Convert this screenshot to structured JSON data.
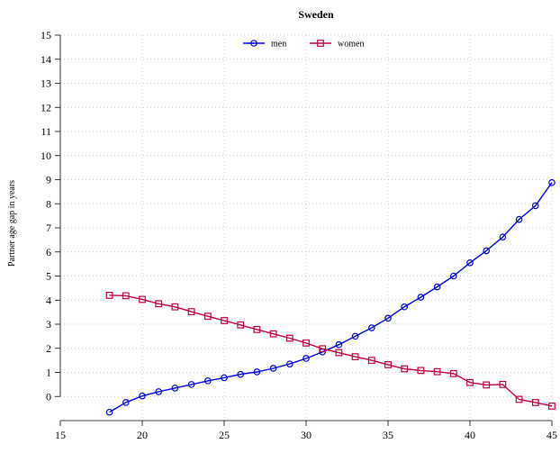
{
  "chart_data": {
    "type": "line",
    "title": "Sweden",
    "xlabel": "",
    "ylabel": "Partner age gap in years",
    "xlim": [
      15,
      45
    ],
    "ylim": [
      -1,
      15
    ],
    "x_ticks": [
      15,
      20,
      25,
      30,
      35,
      40,
      45
    ],
    "y_ticks": [
      0,
      1,
      2,
      3,
      4,
      5,
      6,
      7,
      8,
      9,
      10,
      11,
      12,
      13,
      14,
      15
    ],
    "grid": true,
    "legend_position": "top-center",
    "x": [
      18,
      19,
      20,
      21,
      22,
      23,
      24,
      25,
      26,
      27,
      28,
      29,
      30,
      31,
      32,
      33,
      34,
      35,
      36,
      37,
      38,
      39,
      40,
      41,
      42,
      43,
      44,
      45
    ],
    "series": [
      {
        "name": "men",
        "color": "#0000dd",
        "marker": "circle",
        "values": [
          -0.65,
          -0.25,
          0.02,
          0.2,
          0.35,
          0.5,
          0.65,
          0.78,
          0.92,
          1.02,
          1.17,
          1.35,
          1.58,
          1.85,
          2.15,
          2.5,
          2.85,
          3.25,
          3.72,
          4.12,
          4.55,
          5.0,
          5.55,
          6.05,
          6.62,
          7.35,
          7.92,
          8.88
        ]
      },
      {
        "name": "women",
        "color": "#c0003c",
        "marker": "square",
        "values": [
          4.2,
          4.18,
          4.03,
          3.85,
          3.72,
          3.52,
          3.33,
          3.15,
          2.97,
          2.78,
          2.6,
          2.42,
          2.22,
          1.98,
          1.82,
          1.65,
          1.5,
          1.32,
          1.15,
          1.08,
          1.03,
          0.95,
          0.58,
          0.48,
          0.5,
          -0.12,
          -0.25,
          -0.4
        ]
      }
    ]
  }
}
